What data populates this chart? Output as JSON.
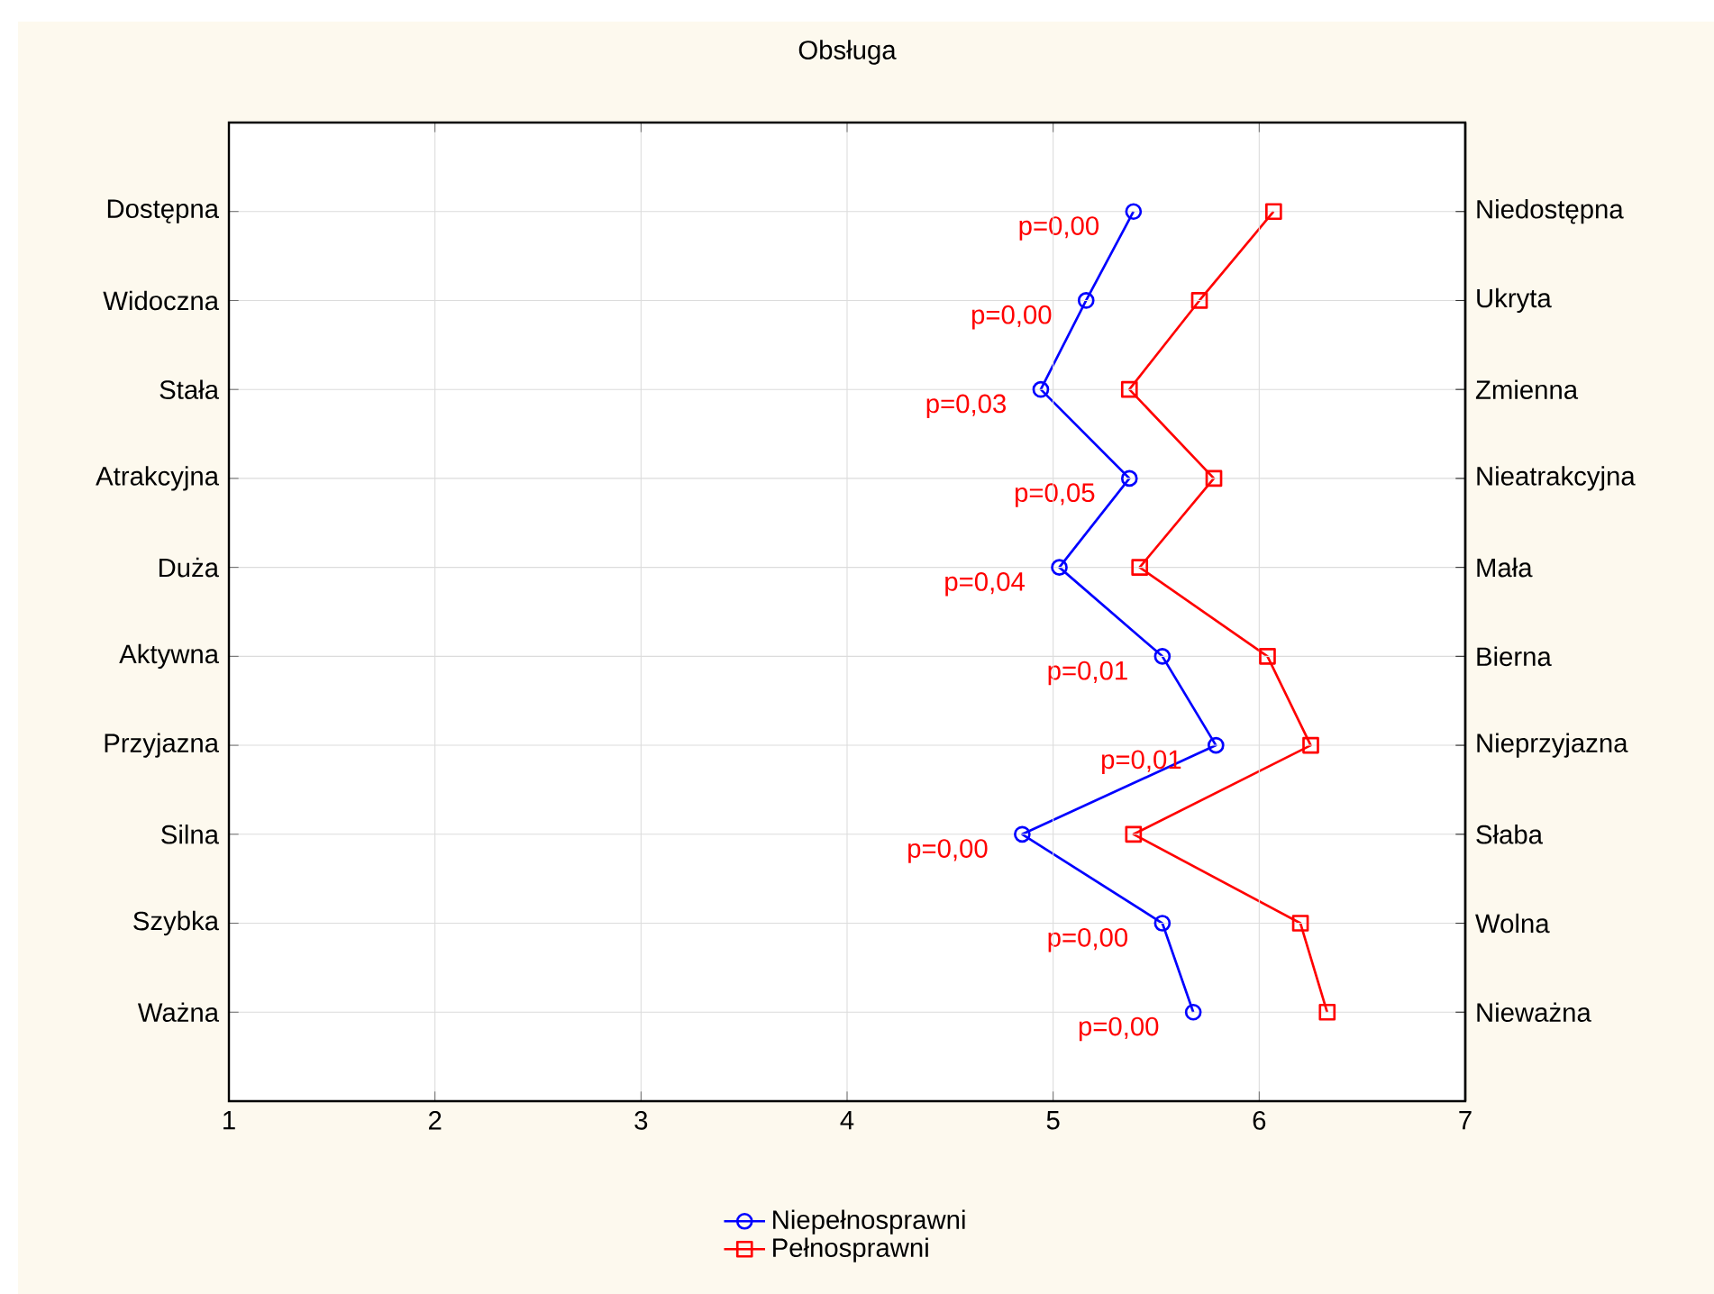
{
  "chart_data": {
    "type": "line",
    "orientation": "horizontal",
    "title": "Obsługa",
    "categories": [
      "Dostępna",
      "Widoczna",
      "Stała",
      "Atrakcyjna",
      "Duża",
      "Aktywna",
      "Przyjazna",
      "Silna",
      "Szybka",
      "Ważna"
    ],
    "y2_categories": [
      "Niedostępna",
      "Ukryta",
      "Zmienna",
      "Nieatrakcyjna",
      "Mała",
      "Bierna",
      "Nieprzyjazna",
      "Słaba",
      "Wolna",
      "Nieważna"
    ],
    "series": [
      {
        "name": "Niepełnosprawni",
        "color": "#0000ff",
        "marker": "circle",
        "values": [
          5.39,
          5.16,
          4.94,
          5.37,
          5.03,
          5.53,
          5.79,
          4.85,
          5.53,
          5.68
        ]
      },
      {
        "name": "Pełnosprawni",
        "color": "#ff0000",
        "marker": "square",
        "values": [
          6.07,
          5.71,
          5.37,
          5.78,
          5.42,
          6.04,
          6.25,
          5.39,
          6.2,
          6.33
        ]
      }
    ],
    "xlim": [
      1,
      7
    ],
    "xticks": [
      1,
      2,
      3,
      4,
      5,
      6,
      7
    ],
    "grid": true,
    "legend": "bottom",
    "line_style": "solid",
    "annotations": [
      "p=0,00",
      "p=0,00",
      "p=0,03",
      "p=0,05",
      "p=0,04",
      "p=0,01",
      "p=0,01",
      "p=0,00",
      "p=0,00",
      "p=0,00"
    ]
  }
}
